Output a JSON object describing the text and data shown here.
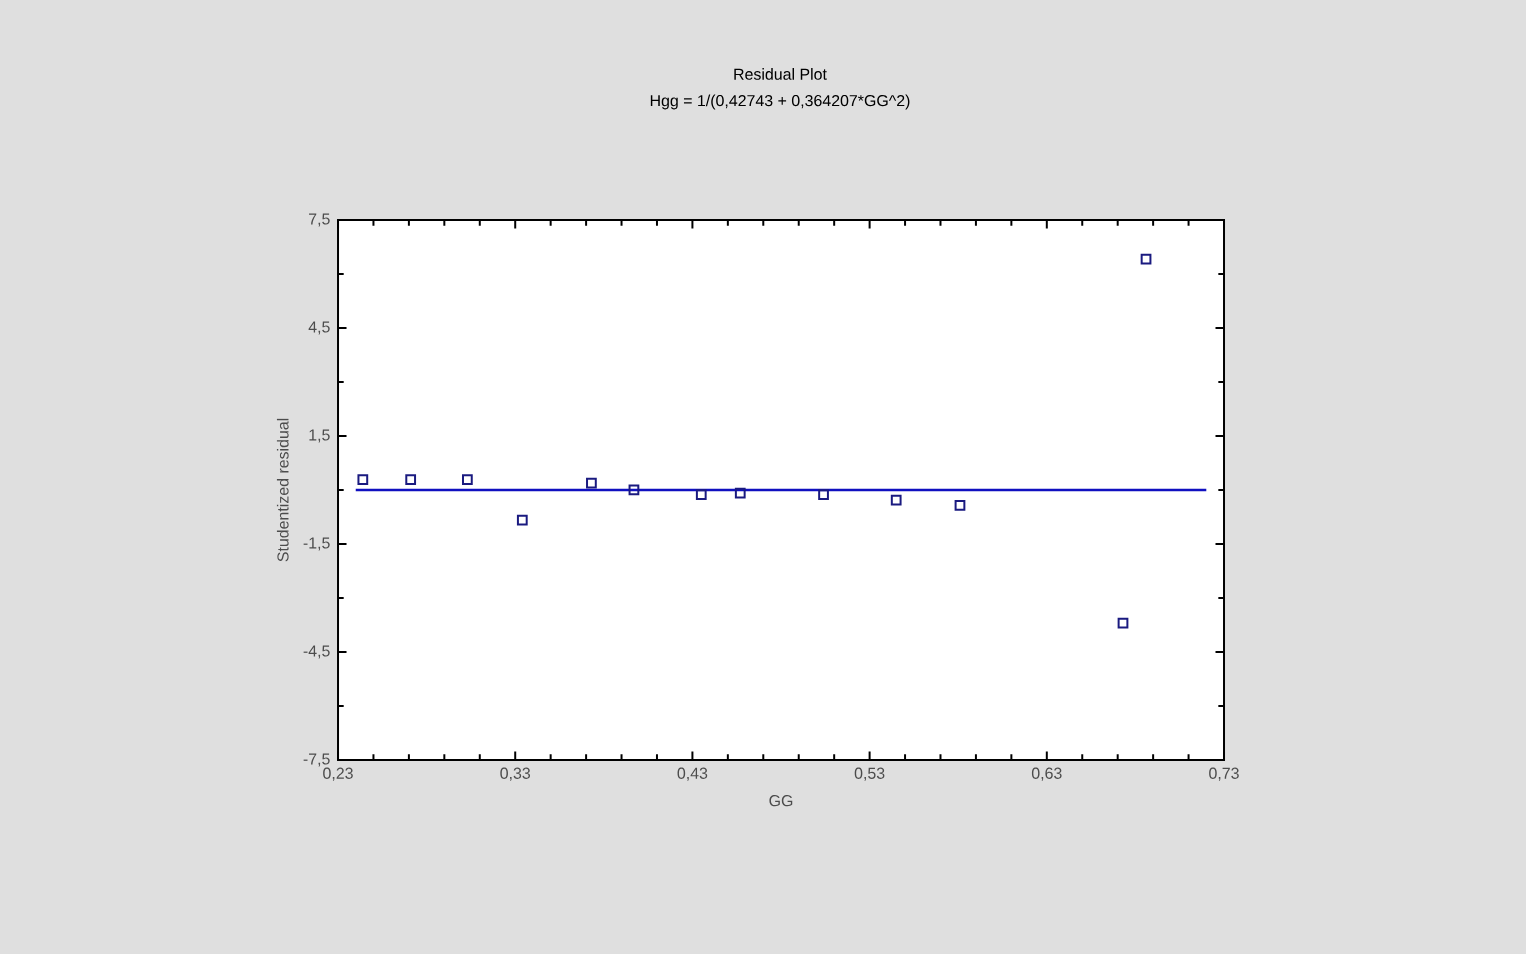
{
  "chart_data": {
    "type": "scatter",
    "title": "Residual Plot",
    "subtitle": "Hgg = 1/(0,42743 + 0,364207*GG^2)",
    "xlabel": "GG",
    "ylabel": "Studentized residual",
    "x": [
      0.244,
      0.271,
      0.303,
      0.334,
      0.373,
      0.397,
      0.435,
      0.457,
      0.504,
      0.545,
      0.581,
      0.686,
      0.673
    ],
    "series": [
      {
        "color": "#1a1a80",
        "values": [
          0.29,
          0.29,
          0.29,
          -0.84,
          0.19,
          0,
          -0.13,
          -0.09,
          -0.13,
          -0.28,
          -0.43,
          6.41,
          -3.7
        ]
      },
      {
        "type": "line",
        "marker": "none",
        "color": "#1010c0",
        "x": [
          0.24,
          0.72
        ],
        "values": [
          0,
          0
        ]
      }
    ],
    "marker": "square",
    "xlim": [
      0.23,
      0.73
    ],
    "ylim": [
      -7.5,
      7.5
    ],
    "xticks": [
      {
        "value": 0.23,
        "label": "0,23"
      },
      {
        "value": 0.33,
        "label": "0,33"
      },
      {
        "value": 0.43,
        "label": "0,43"
      },
      {
        "value": 0.53,
        "label": "0,53"
      },
      {
        "value": 0.63,
        "label": "0,63"
      },
      {
        "value": 0.73,
        "label": "0,73"
      }
    ],
    "yticks": [
      {
        "value": -7.5,
        "label": "-7,5"
      },
      {
        "value": -4.5,
        "label": "-4,5"
      },
      {
        "value": -1.5,
        "label": "-1,5"
      },
      {
        "value": 1.5,
        "label": "1,5"
      },
      {
        "value": 4.5,
        "label": "4,5"
      },
      {
        "value": 7.5,
        "label": "7,5"
      }
    ]
  }
}
